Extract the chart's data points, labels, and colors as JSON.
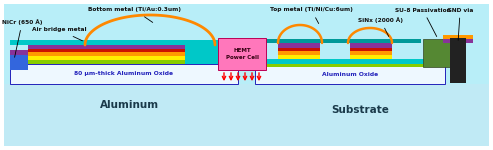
{
  "fig_width": 4.93,
  "fig_height": 1.5,
  "dpi": 100,
  "bg_color": "#ffffff",
  "colors": {
    "substrate_bg": "#b8eef8",
    "aluminum_bg": "#c0eaf5",
    "alox_fill": "#eef8ff",
    "alox_border": "#2222bb",
    "cyan_platform": "#00c8c8",
    "layer_green": "#88cc00",
    "layer_yellow": "#ffee00",
    "layer_orange": "#ff9900",
    "layer_red": "#cc1100",
    "layer_purple": "#883399",
    "layer_blue_nicr": "#3366dd",
    "layer_gold_bottom": "#ddaa00",
    "hemt_pink": "#ff77bb",
    "sinx_teal": "#009999",
    "su8_olive": "#558833",
    "gnd_dark": "#222222",
    "gold_wire": "#ff8800",
    "white": "#ffffff",
    "black": "#111111"
  },
  "labels": {
    "nicr": "NiCr (650 Å)",
    "airbridge": "Air bridge metal",
    "bottom_metal": "Bottom metal (Ti/Au:0.3um)",
    "top_metal": "Top metal (Ti/Ni/Cu:6um)",
    "su8": "SU-8 Passivation",
    "sinx": "SiNx (2000 Å)",
    "gnd_via": "GND via",
    "alox_left": "80 µm-thick Aluminum Oxide",
    "alox_right": "Aluminum Oxide",
    "aluminum": "Aluminum",
    "substrate": "Substrate",
    "hemt": "HEMT\nPower Cell"
  },
  "annot_fontsize": 4.2,
  "label_fontsize": 7.5
}
